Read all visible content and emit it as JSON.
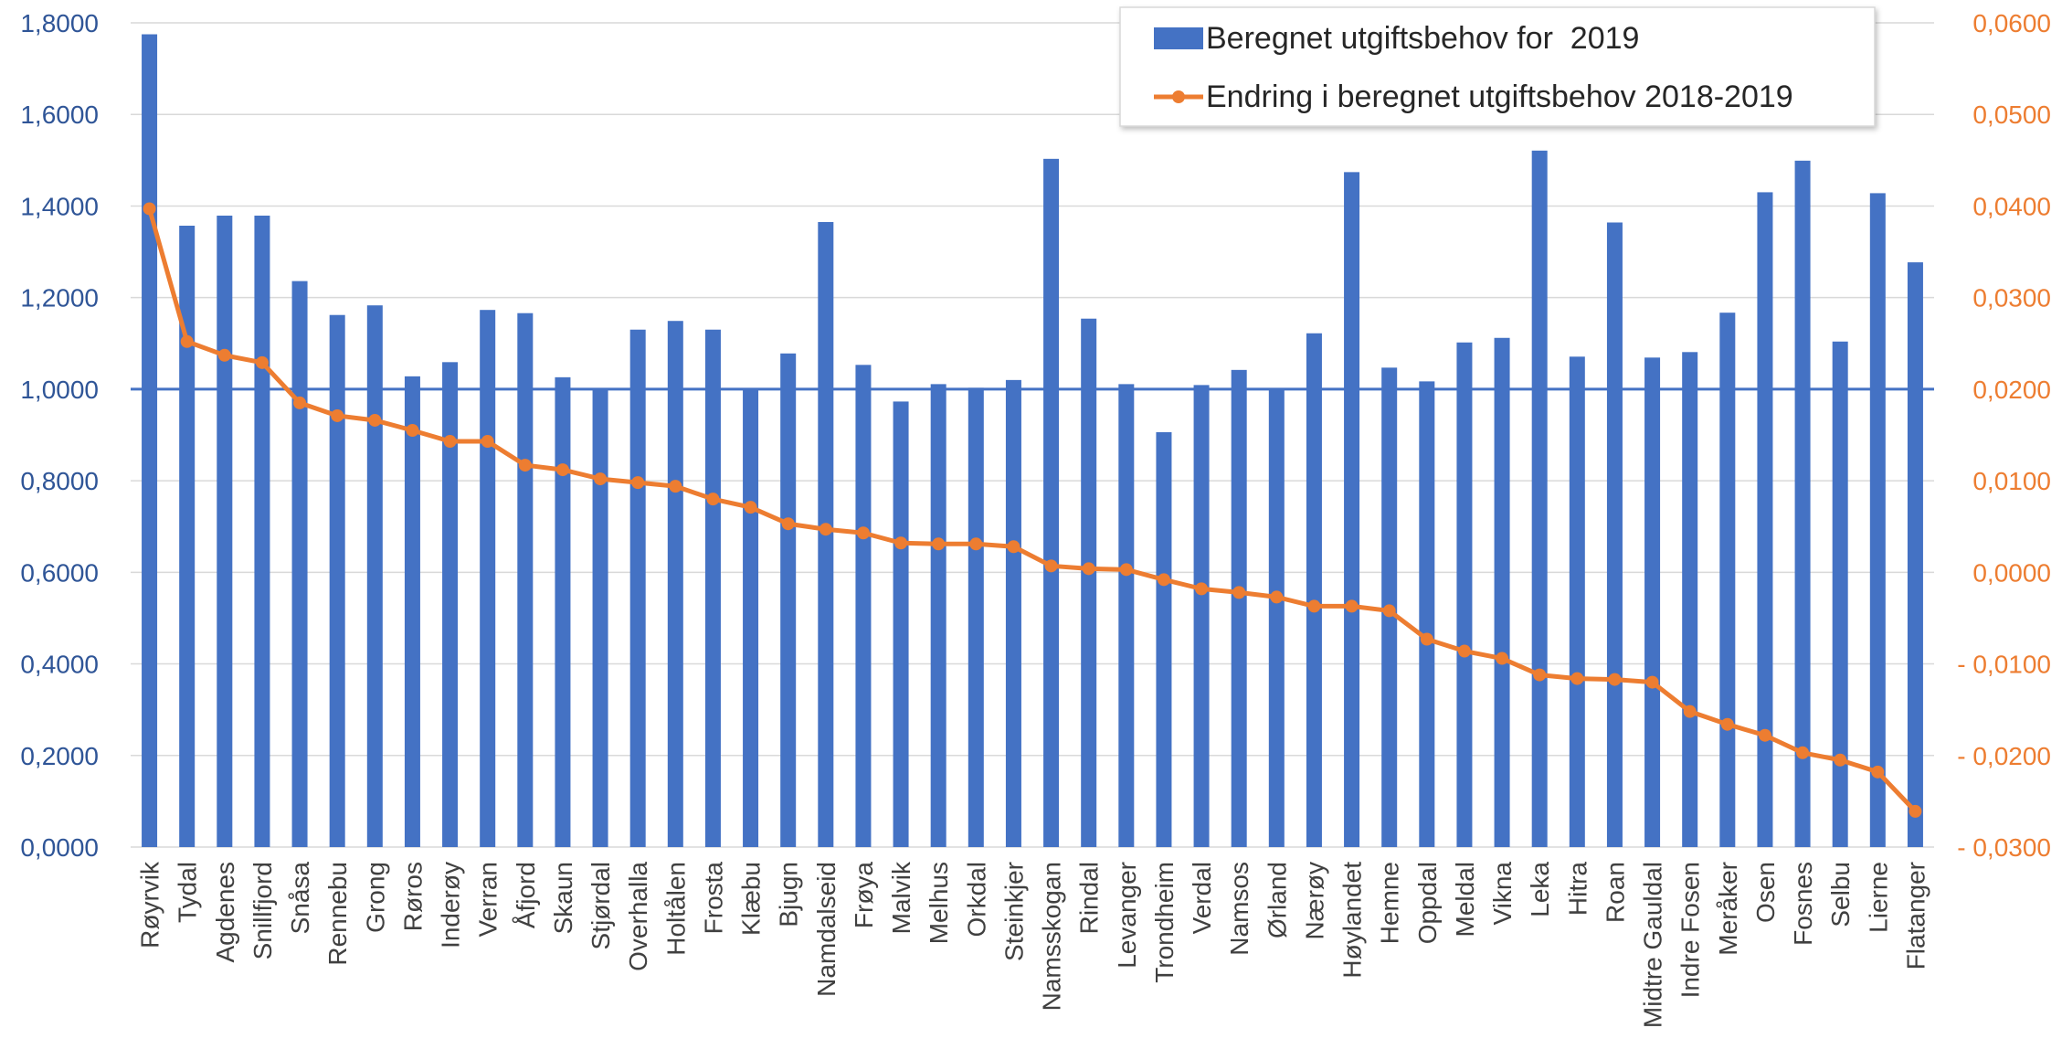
{
  "chart_data": {
    "type": "bar",
    "categories": [
      "Røyrvik",
      "Tydal",
      "Agdenes",
      "Snillfjord",
      "Snåsa",
      "Rennebu",
      "Grong",
      "Røros",
      "Inderøy",
      "Verran",
      "Åfjord",
      "Skaun",
      "Stjørdal",
      "Overhalla",
      "Holtålen",
      "Frosta",
      "Klæbu",
      "Bjugn",
      "Namdalseid",
      "Frøya",
      "Malvik",
      "Melhus",
      "Orkdal",
      "Steinkjer",
      "Namsskogan",
      "Rindal",
      "Levanger",
      "Trondheim",
      "Verdal",
      "Namsos",
      "Ørland",
      "Nærøy",
      "Høylandet",
      "Hemne",
      "Oppdal",
      "Meldal",
      "Vikna",
      "Leka",
      "Hitra",
      "Roan",
      "Midtre Gauldal",
      "Indre Fosen",
      "Meråker",
      "Osen",
      "Fosnes",
      "Selbu",
      "Lierne",
      "Flatanger"
    ],
    "series": [
      {
        "name": "Beregnet utgiftsbehov for  2019",
        "type": "bar",
        "axis": "left",
        "color": "#4472c4",
        "values": [
          1.775,
          1.357,
          1.379,
          1.379,
          1.236,
          1.162,
          1.183,
          1.028,
          1.059,
          1.173,
          1.166,
          1.026,
          1.0,
          1.13,
          1.149,
          1.13,
          1.0,
          1.078,
          1.365,
          1.053,
          0.973,
          1.011,
          1.003,
          1.02,
          1.503,
          1.154,
          1.011,
          0.906,
          1.009,
          1.042,
          1.0,
          1.122,
          1.474,
          1.047,
          1.017,
          1.102,
          1.112,
          1.521,
          1.071,
          1.364,
          1.069,
          1.081,
          1.167,
          1.43,
          1.499,
          1.104,
          1.428,
          1.277
        ]
      },
      {
        "name": "Endring i beregnet utgiftsbehov 2018-2019",
        "type": "line",
        "axis": "right",
        "color": "#ed7d31",
        "values": [
          0.0397,
          0.0252,
          0.0237,
          0.0229,
          0.0185,
          0.0171,
          0.0166,
          0.0155,
          0.0143,
          0.0143,
          0.0117,
          0.0112,
          0.0102,
          0.0098,
          0.0094,
          0.008,
          0.0071,
          0.0053,
          0.0047,
          0.0043,
          0.0032,
          0.0031,
          0.0031,
          0.0028,
          0.0007,
          0.0004,
          0.0003,
          -0.0008,
          -0.0018,
          -0.0022,
          -0.0027,
          -0.0037,
          -0.0037,
          -0.0042,
          -0.0073,
          -0.0086,
          -0.0094,
          -0.0112,
          -0.0116,
          -0.0117,
          -0.012,
          -0.0152,
          -0.0166,
          -0.0178,
          -0.0197,
          -0.0205,
          -0.0218,
          -0.0261
        ]
      }
    ],
    "reference_line": {
      "axis": "left",
      "value": 1.0,
      "color": "#4472c4"
    },
    "y_left": {
      "ylim": [
        0,
        1.8
      ],
      "ticks": [
        0,
        0.2,
        0.4,
        0.6,
        0.8,
        1.0,
        1.2,
        1.4,
        1.6,
        1.8
      ],
      "tick_labels": [
        "0,0000",
        "0,2000",
        "0,4000",
        "0,6000",
        "0,8000",
        "1,0000",
        "1,2000",
        "1,4000",
        "1,6000",
        "1,8000"
      ],
      "color": "#2f5597"
    },
    "y_right": {
      "ylim": [
        -0.03,
        0.06
      ],
      "ticks": [
        -0.03,
        -0.02,
        -0.01,
        0,
        0.01,
        0.02,
        0.03,
        0.04,
        0.05,
        0.06
      ],
      "tick_labels": [
        "- 0,0300",
        "- 0,0200",
        "- 0,0100",
        "0,0000",
        "0,0100",
        "0,0200",
        "0,0300",
        "0,0400",
        "0,0500",
        "0,0600"
      ],
      "color": "#ed7d31"
    },
    "grid": true,
    "gridline_color": "#d9d9d9",
    "legend_position": "top-right"
  }
}
